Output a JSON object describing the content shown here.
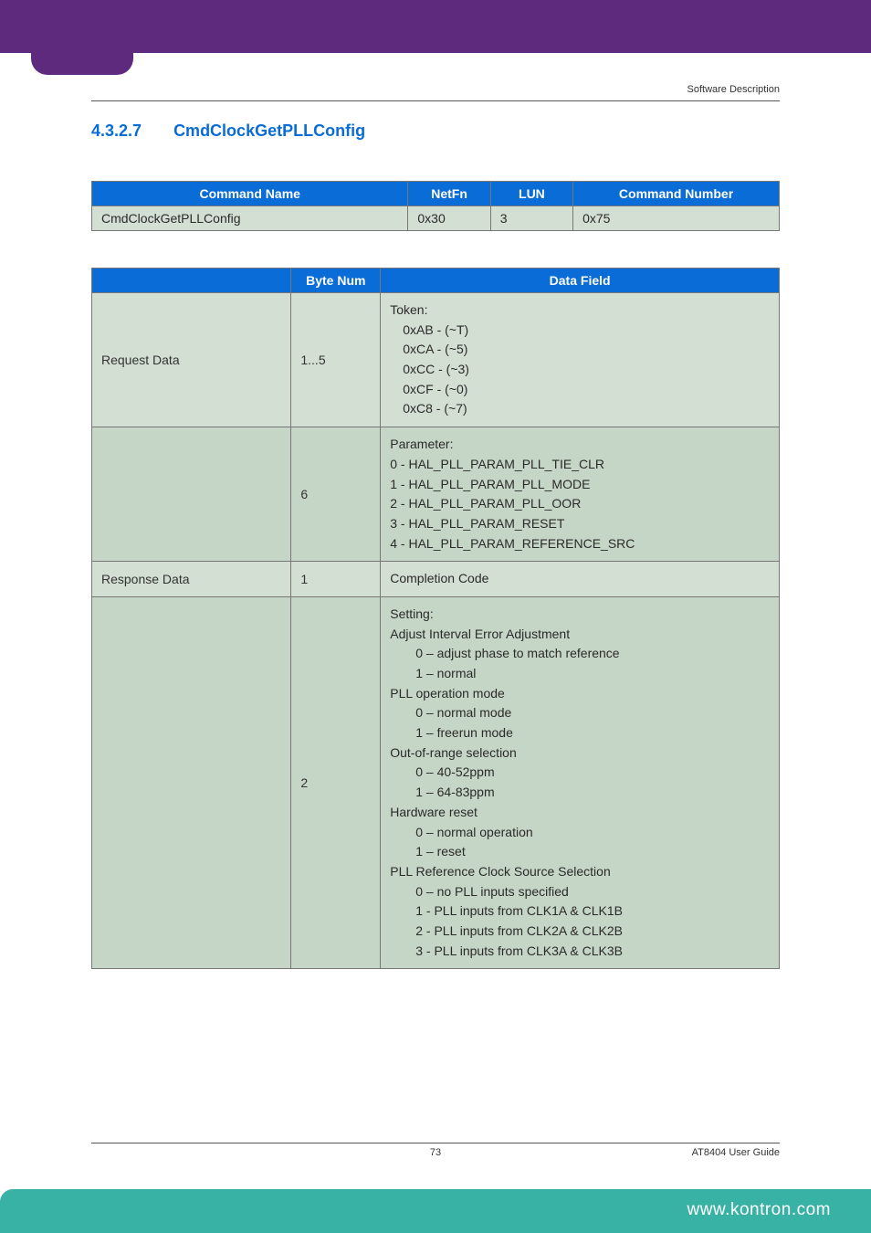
{
  "header": {
    "soft_desc": "Software Description"
  },
  "section": {
    "number": "4.3.2.7",
    "title": "CmdClockGetPLLConfig"
  },
  "cmd_table": {
    "headers": {
      "name": "Command Name",
      "netfn": "NetFn",
      "lun": "LUN",
      "num": "Command Number"
    },
    "row": {
      "name": "CmdClockGetPLLConfig",
      "netfn": "0x30",
      "lun": "3",
      "num": "0x75"
    }
  },
  "data_table": {
    "headers": {
      "blank": "",
      "byte": "Byte Num",
      "field": "Data Field"
    },
    "rows": [
      {
        "label": "Request Data",
        "byte": "1...5",
        "shade": "a",
        "lines": [
          {
            "txt": "Token:",
            "indent": 0
          },
          {
            "txt": "0xAB - (~T)",
            "indent": 1
          },
          {
            "txt": "0xCA - (~5)",
            "indent": 1
          },
          {
            "txt": "0xCC - (~3)",
            "indent": 1
          },
          {
            "txt": "0xCF  - (~0)",
            "indent": 1
          },
          {
            "txt": "0xC8 - (~7)",
            "indent": 1
          }
        ]
      },
      {
        "label": "",
        "byte": "6",
        "shade": "b",
        "lines": [
          {
            "txt": "Parameter:",
            "indent": 0
          },
          {
            "txt": "0 - HAL_PLL_PARAM_PLL_TIE_CLR",
            "indent": 0
          },
          {
            "txt": "1 - HAL_PLL_PARAM_PLL_MODE",
            "indent": 0
          },
          {
            "txt": "2 - HAL_PLL_PARAM_PLL_OOR",
            "indent": 0
          },
          {
            "txt": "3 - HAL_PLL_PARAM_RESET",
            "indent": 0
          },
          {
            "txt": "4 - HAL_PLL_PARAM_REFERENCE_SRC",
            "indent": 0
          }
        ]
      },
      {
        "label": "Response Data",
        "byte": "1",
        "shade": "a",
        "lines": [
          {
            "txt": "Completion Code",
            "indent": 0
          }
        ]
      },
      {
        "label": "",
        "byte": "2",
        "shade": "b",
        "lines": [
          {
            "txt": "Setting:",
            "indent": 0
          },
          {
            "txt": "Adjust Interval Error Adjustment",
            "indent": 0
          },
          {
            "txt": "0 – adjust phase to match reference",
            "indent": 2
          },
          {
            "txt": "1 – normal",
            "indent": 2
          },
          {
            "txt": "PLL operation mode",
            "indent": 0
          },
          {
            "txt": "0 – normal mode",
            "indent": 2
          },
          {
            "txt": "1 – freerun mode",
            "indent": 2
          },
          {
            "txt": "Out-of-range selection",
            "indent": 0
          },
          {
            "txt": "0 – 40-52ppm",
            "indent": 2
          },
          {
            "txt": "1 – 64-83ppm",
            "indent": 2
          },
          {
            "txt": "Hardware reset",
            "indent": 0
          },
          {
            "txt": "0 – normal operation",
            "indent": 2
          },
          {
            "txt": "1 – reset",
            "indent": 2
          },
          {
            "txt": "PLL Reference Clock Source Selection",
            "indent": 0
          },
          {
            "txt": "0 – no PLL inputs specified",
            "indent": 2
          },
          {
            "txt": "1 - PLL inputs from CLK1A & CLK1B",
            "indent": 2
          },
          {
            "txt": "2 - PLL inputs from CLK2A & CLK2B",
            "indent": 2
          },
          {
            "txt": "3 - PLL inputs from CLK3A & CLK3B",
            "indent": 2
          }
        ]
      }
    ]
  },
  "footer": {
    "page": "73",
    "guide": "AT8404 User  Guide",
    "url": "www.kontron.com"
  },
  "colors": {
    "purple": "#5e2a7e",
    "blue": "#0a6cd6",
    "teal": "#39b2a6",
    "cell_a": "#d3dfd3",
    "cell_b": "#c6d6c6"
  }
}
